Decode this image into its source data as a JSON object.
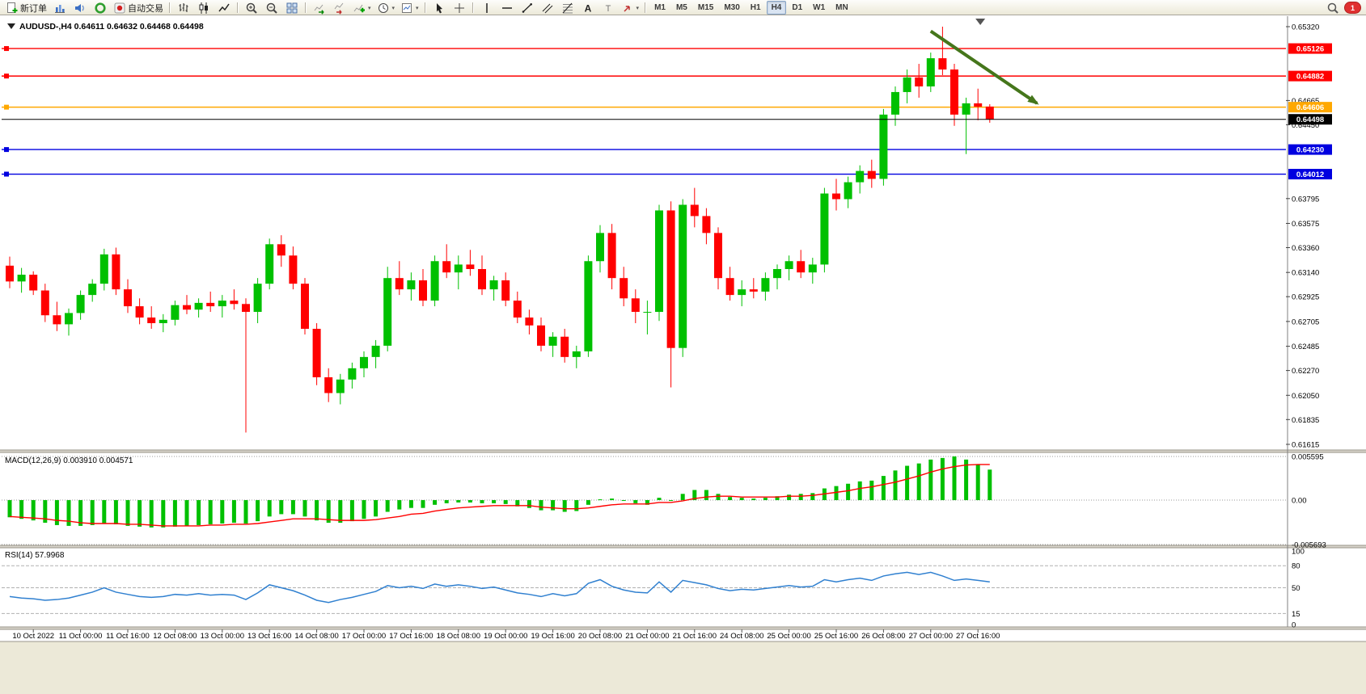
{
  "toolbar": {
    "items": [
      {
        "name": "new-order-button",
        "icon": "doc-plus",
        "label": "新订单",
        "dropdown": false
      },
      {
        "name": "charts-profile-button",
        "icon": "chart-blue",
        "dropdown": false
      },
      {
        "name": "alerts-button",
        "icon": "sound-blue",
        "dropdown": false
      },
      {
        "name": "news-button",
        "icon": "circle-green",
        "dropdown": false
      },
      {
        "name": "auto-trading-button",
        "icon": "play-red",
        "label": "自动交易",
        "dropdown": false
      },
      {
        "type": "separator"
      },
      {
        "name": "bar-chart-button",
        "icon": "ohlc-bars",
        "dropdown": false
      },
      {
        "name": "candlestick-button",
        "icon": "candles",
        "dropdown": false
      },
      {
        "name": "line-chart-button",
        "icon": "line-chart",
        "dropdown": false
      },
      {
        "type": "separator"
      },
      {
        "name": "zoom-in-button",
        "icon": "zoom-in",
        "dropdown": false
      },
      {
        "name": "zoom-out-button",
        "icon": "zoom-out",
        "dropdown": false
      },
      {
        "name": "tile-windows-button",
        "icon": "tile",
        "dropdown": false
      },
      {
        "type": "separator"
      },
      {
        "name": "auto-scroll-button",
        "icon": "auto-scroll",
        "dropdown": false
      },
      {
        "name": "chart-shift-button",
        "icon": "chart-shift",
        "dropdown": false
      },
      {
        "name": "indicators-button",
        "icon": "indicator-add",
        "dropdown": true
      },
      {
        "name": "periods-button",
        "icon": "clock",
        "dropdown": true
      },
      {
        "name": "templates-button",
        "icon": "template",
        "dropdown": true
      },
      {
        "type": "separator"
      },
      {
        "name": "cursor-button",
        "icon": "cursor",
        "dropdown": false
      },
      {
        "name": "crosshair-button",
        "icon": "crosshair",
        "dropdown": false
      },
      {
        "type": "separator"
      },
      {
        "name": "vertical-line-button",
        "icon": "vline",
        "dropdown": false
      },
      {
        "name": "horizontal-line-button",
        "icon": "hline",
        "dropdown": false
      },
      {
        "name": "trendline-button",
        "icon": "tline",
        "dropdown": false
      },
      {
        "name": "channel-button",
        "icon": "channel",
        "dropdown": false
      },
      {
        "name": "fibonacci-button",
        "icon": "fibo",
        "dropdown": false
      },
      {
        "name": "text-button",
        "icon": "text-a",
        "dropdown": false
      },
      {
        "name": "text-label-button",
        "icon": "text-t",
        "dropdown": false
      },
      {
        "name": "arrows-button",
        "icon": "arrow-shape",
        "dropdown": true
      }
    ],
    "timeframes": [
      "M1",
      "M5",
      "M15",
      "M30",
      "H1",
      "H4",
      "D1",
      "W1",
      "MN"
    ],
    "active_timeframe": "H4",
    "notification_count": "1"
  },
  "chart_data": {
    "type": "candlestick",
    "title": "AUDUSD-,H4",
    "ohlc_display": "0.64611 0.64632 0.64468 0.64498",
    "price_axis": {
      "max": 0.6532,
      "min": 0.61615,
      "ticks": [
        "0.65320",
        "0.64665",
        "0.64450",
        "0.63795",
        "0.63575",
        "0.63360",
        "0.63140",
        "0.62925",
        "0.62705",
        "0.62485",
        "0.62270",
        "0.62050",
        "0.61835",
        "0.61615"
      ]
    },
    "time_label_indices": [
      2,
      6,
      10,
      14,
      18,
      22,
      26,
      30,
      34,
      38,
      42,
      46,
      50,
      54,
      58,
      62,
      66,
      70,
      74,
      78,
      82
    ],
    "time_labels": [
      "10 Oct 2022",
      "11 Oct 00:00",
      "11 Oct 16:00",
      "12 Oct 08:00",
      "13 Oct 00:00",
      "13 Oct 16:00",
      "14 Oct 08:00",
      "17 Oct 00:00",
      "17 Oct 16:00",
      "18 Oct 08:00",
      "19 Oct 00:00",
      "19 Oct 16:00",
      "20 Oct 08:00",
      "21 Oct 00:00",
      "21 Oct 16:00",
      "24 Oct 08:00",
      "25 Oct 00:00",
      "25 Oct 16:00",
      "26 Oct 08:00",
      "27 Oct 00:00",
      "27 Oct 16:00"
    ],
    "candles": [
      [
        0.632,
        0.6328,
        0.63,
        0.6306
      ],
      [
        0.6306,
        0.6318,
        0.6296,
        0.6312
      ],
      [
        0.6312,
        0.6315,
        0.6294,
        0.6298
      ],
      [
        0.6298,
        0.6304,
        0.627,
        0.6276
      ],
      [
        0.6276,
        0.6288,
        0.6262,
        0.6268
      ],
      [
        0.6268,
        0.6282,
        0.6258,
        0.6278
      ],
      [
        0.6278,
        0.6298,
        0.6272,
        0.6294
      ],
      [
        0.6294,
        0.6308,
        0.6288,
        0.6304
      ],
      [
        0.6304,
        0.6335,
        0.6298,
        0.633
      ],
      [
        0.633,
        0.6336,
        0.6294,
        0.6299
      ],
      [
        0.6299,
        0.6308,
        0.6278,
        0.6284
      ],
      [
        0.6284,
        0.6291,
        0.6268,
        0.6274
      ],
      [
        0.6274,
        0.6284,
        0.6264,
        0.6269
      ],
      [
        0.6269,
        0.6277,
        0.6261,
        0.6272
      ],
      [
        0.6272,
        0.6289,
        0.6267,
        0.6285
      ],
      [
        0.6285,
        0.6294,
        0.6277,
        0.6281
      ],
      [
        0.6281,
        0.6291,
        0.6274,
        0.6287
      ],
      [
        0.6287,
        0.6297,
        0.6279,
        0.6284
      ],
      [
        0.6284,
        0.6294,
        0.6274,
        0.6289
      ],
      [
        0.6289,
        0.6299,
        0.6281,
        0.6286
      ],
      [
        0.6286,
        0.6291,
        0.6172,
        0.6279
      ],
      [
        0.6279,
        0.6309,
        0.6269,
        0.6304
      ],
      [
        0.6304,
        0.6344,
        0.6299,
        0.6339
      ],
      [
        0.6339,
        0.6347,
        0.6319,
        0.6329
      ],
      [
        0.6329,
        0.6337,
        0.6299,
        0.6304
      ],
      [
        0.6304,
        0.6309,
        0.6259,
        0.6264
      ],
      [
        0.6264,
        0.6269,
        0.6214,
        0.6221
      ],
      [
        0.6221,
        0.6229,
        0.6199,
        0.6207
      ],
      [
        0.6207,
        0.6224,
        0.6197,
        0.6219
      ],
      [
        0.6219,
        0.6234,
        0.6211,
        0.6229
      ],
      [
        0.6229,
        0.6244,
        0.6221,
        0.6239
      ],
      [
        0.6239,
        0.6254,
        0.6229,
        0.6249
      ],
      [
        0.6249,
        0.6319,
        0.6244,
        0.6309
      ],
      [
        0.6309,
        0.6324,
        0.6294,
        0.6299
      ],
      [
        0.6299,
        0.6314,
        0.6289,
        0.6307
      ],
      [
        0.6307,
        0.6317,
        0.6284,
        0.6289
      ],
      [
        0.6289,
        0.6329,
        0.6284,
        0.6324
      ],
      [
        0.6324,
        0.6339,
        0.6309,
        0.6314
      ],
      [
        0.6314,
        0.6329,
        0.6299,
        0.6321
      ],
      [
        0.6321,
        0.6334,
        0.6311,
        0.6317
      ],
      [
        0.6317,
        0.6329,
        0.6294,
        0.6299
      ],
      [
        0.6299,
        0.6311,
        0.6289,
        0.6307
      ],
      [
        0.6307,
        0.6314,
        0.6284,
        0.6289
      ],
      [
        0.6289,
        0.6297,
        0.6269,
        0.6274
      ],
      [
        0.6274,
        0.6281,
        0.6259,
        0.6267
      ],
      [
        0.6267,
        0.6274,
        0.6244,
        0.6249
      ],
      [
        0.6249,
        0.6261,
        0.6239,
        0.6257
      ],
      [
        0.6257,
        0.6264,
        0.6234,
        0.6239
      ],
      [
        0.6239,
        0.6249,
        0.6229,
        0.6244
      ],
      [
        0.6244,
        0.6329,
        0.6239,
        0.6324
      ],
      [
        0.6324,
        0.6356,
        0.6314,
        0.6349
      ],
      [
        0.6349,
        0.6357,
        0.6299,
        0.6309
      ],
      [
        0.6309,
        0.6319,
        0.6284,
        0.6291
      ],
      [
        0.6291,
        0.6299,
        0.6269,
        0.6279
      ],
      [
        0.6279,
        0.6289,
        0.6259,
        0.6279
      ],
      [
        0.6279,
        0.6374,
        0.6271,
        0.6369
      ],
      [
        0.6369,
        0.6377,
        0.6212,
        0.6247
      ],
      [
        0.6247,
        0.6379,
        0.6239,
        0.6374
      ],
      [
        0.6374,
        0.6389,
        0.6354,
        0.6364
      ],
      [
        0.6364,
        0.6371,
        0.6339,
        0.6349
      ],
      [
        0.6349,
        0.6354,
        0.6299,
        0.6309
      ],
      [
        0.6309,
        0.6319,
        0.6289,
        0.6294
      ],
      [
        0.6294,
        0.6307,
        0.6284,
        0.6299
      ],
      [
        0.6299,
        0.6309,
        0.6291,
        0.6297
      ],
      [
        0.6297,
        0.6314,
        0.6289,
        0.6309
      ],
      [
        0.6309,
        0.6321,
        0.6299,
        0.6317
      ],
      [
        0.6317,
        0.6329,
        0.6307,
        0.6324
      ],
      [
        0.6324,
        0.6334,
        0.6309,
        0.6314
      ],
      [
        0.6314,
        0.6327,
        0.6304,
        0.6321
      ],
      [
        0.6321,
        0.6389,
        0.6314,
        0.6384
      ],
      [
        0.6384,
        0.6397,
        0.6369,
        0.6379
      ],
      [
        0.6379,
        0.6399,
        0.6371,
        0.6394
      ],
      [
        0.6394,
        0.6409,
        0.6384,
        0.6404
      ],
      [
        0.6404,
        0.6414,
        0.6389,
        0.6397
      ],
      [
        0.6397,
        0.6459,
        0.6391,
        0.6454
      ],
      [
        0.6454,
        0.6479,
        0.6444,
        0.6474
      ],
      [
        0.6474,
        0.6494,
        0.6464,
        0.6487
      ],
      [
        0.6487,
        0.6499,
        0.6469,
        0.6479
      ],
      [
        0.6479,
        0.6509,
        0.6474,
        0.6504
      ],
      [
        0.6504,
        0.6532,
        0.6489,
        0.6494
      ],
      [
        0.6494,
        0.6499,
        0.6444,
        0.6454
      ],
      [
        0.6454,
        0.6469,
        0.6419,
        0.6464
      ],
      [
        0.6464,
        0.6477,
        0.6449,
        0.6461
      ],
      [
        0.64611,
        0.64632,
        0.64468,
        0.64498
      ]
    ],
    "hlines": [
      {
        "price": 0.65126,
        "label": "0.65126",
        "color": "#FF0000"
      },
      {
        "price": 0.64882,
        "label": "0.64882",
        "color": "#FF0000"
      },
      {
        "price": 0.64606,
        "label": "0.64606",
        "color": "#FFA800"
      },
      {
        "price": 0.6423,
        "label": "0.64230",
        "color": "#0000E0"
      },
      {
        "price": 0.64012,
        "label": "0.64012",
        "color": "#0000E0"
      }
    ],
    "current_price": {
      "price": 0.64498,
      "label": "0.64498",
      "color": "#000000"
    },
    "trend_arrow": {
      "from": {
        "index": 78,
        "price": 0.6528
      },
      "to": {
        "index": 87,
        "price": 0.6464
      },
      "color": "#45761B"
    },
    "macd": {
      "label": "MACD(12,26,9)",
      "values_display": "0.003910 0.004571",
      "axis": [
        {
          "value": 0.005595,
          "label": "0.005595"
        },
        {
          "value": 0,
          "label": "0.00"
        },
        {
          "value": -0.005693,
          "label": "-0.005693"
        }
      ],
      "max": 0.005595,
      "min": -0.005693,
      "histogram": [
        -0.0022,
        -0.0024,
        -0.0026,
        -0.0029,
        -0.0032,
        -0.0033,
        -0.0033,
        -0.0032,
        -0.003,
        -0.0031,
        -0.0033,
        -0.0034,
        -0.0035,
        -0.0035,
        -0.0034,
        -0.0033,
        -0.0032,
        -0.0031,
        -0.003,
        -0.0029,
        -0.003,
        -0.0027,
        -0.0021,
        -0.0018,
        -0.0018,
        -0.0021,
        -0.0026,
        -0.0029,
        -0.0029,
        -0.0027,
        -0.0024,
        -0.0021,
        -0.0015,
        -0.0012,
        -0.001,
        -0.001,
        -0.0006,
        -0.0004,
        -0.0003,
        -0.0003,
        -0.0004,
        -0.0004,
        -0.0005,
        -0.0008,
        -0.001,
        -0.0013,
        -0.0013,
        -0.0015,
        -0.0014,
        -0.0006,
        0.0001,
        0.0002,
        -0.0001,
        -0.0004,
        -0.0006,
        0.0003,
        0.0,
        0.0008,
        0.0013,
        0.0013,
        0.0008,
        0.0004,
        0.0003,
        0.0002,
        0.0003,
        0.0005,
        0.0007,
        0.0008,
        0.0009,
        0.0015,
        0.0018,
        0.0021,
        0.0024,
        0.0025,
        0.0031,
        0.0038,
        0.0044,
        0.0047,
        0.0052,
        0.0054,
        0.0056,
        0.0052,
        0.0046,
        0.00391
      ],
      "signal": [
        -0.0021,
        -0.0022,
        -0.0023,
        -0.0024,
        -0.0026,
        -0.0027,
        -0.0029,
        -0.003,
        -0.003,
        -0.003,
        -0.0031,
        -0.0031,
        -0.0032,
        -0.0033,
        -0.0033,
        -0.0033,
        -0.0033,
        -0.0032,
        -0.0032,
        -0.0031,
        -0.0031,
        -0.003,
        -0.0028,
        -0.0026,
        -0.0024,
        -0.0024,
        -0.0024,
        -0.0025,
        -0.0026,
        -0.0026,
        -0.0026,
        -0.0025,
        -0.0023,
        -0.0021,
        -0.0018,
        -0.0017,
        -0.0014,
        -0.0012,
        -0.001,
        -0.0009,
        -0.0008,
        -0.0007,
        -0.0007,
        -0.0007,
        -0.0007,
        -0.0009,
        -0.001,
        -0.0011,
        -0.0011,
        -0.001,
        -0.0008,
        -0.0006,
        -0.0005,
        -0.0005,
        -0.0005,
        -0.0003,
        -0.0003,
        -0.0001,
        0.0002,
        0.0004,
        0.0005,
        0.0005,
        0.0004,
        0.0004,
        0.0004,
        0.0004,
        0.0005,
        0.0005,
        0.0006,
        0.0008,
        0.001,
        0.0012,
        0.0015,
        0.0017,
        0.002,
        0.0023,
        0.0027,
        0.0031,
        0.0036,
        0.004,
        0.0043,
        0.0045,
        0.00457,
        0.004571
      ]
    },
    "rsi": {
      "label": "RSI(14)",
      "value_display": "57.9968",
      "levels": [
        {
          "value": 100,
          "label": "100"
        },
        {
          "value": 80,
          "label": "80"
        },
        {
          "value": 50,
          "label": "50"
        },
        {
          "value": 15,
          "label": "15"
        },
        {
          "value": 0,
          "label": "0"
        }
      ],
      "series": [
        38,
        36,
        35,
        33,
        34,
        36,
        40,
        44,
        50,
        44,
        41,
        38,
        37,
        38,
        41,
        40,
        42,
        40,
        41,
        40,
        34,
        43,
        54,
        50,
        46,
        40,
        33,
        30,
        34,
        37,
        41,
        45,
        53,
        50,
        52,
        49,
        55,
        52,
        54,
        52,
        49,
        51,
        47,
        43,
        41,
        38,
        42,
        39,
        42,
        56,
        61,
        52,
        47,
        44,
        43,
        58,
        44,
        60,
        57,
        54,
        49,
        46,
        48,
        47,
        49,
        51,
        53,
        51,
        52,
        61,
        58,
        61,
        63,
        60,
        66,
        69,
        71,
        68,
        71,
        66,
        60,
        62,
        60,
        58
      ]
    },
    "colors": {
      "bull": "#00C000",
      "bear": "#FF0000",
      "background": "#FFFFFF",
      "macd_histogram": "#00C000",
      "macd_signal": "#FF0000",
      "rsi_line": "#3080D0",
      "axis_text": "#000000"
    }
  }
}
